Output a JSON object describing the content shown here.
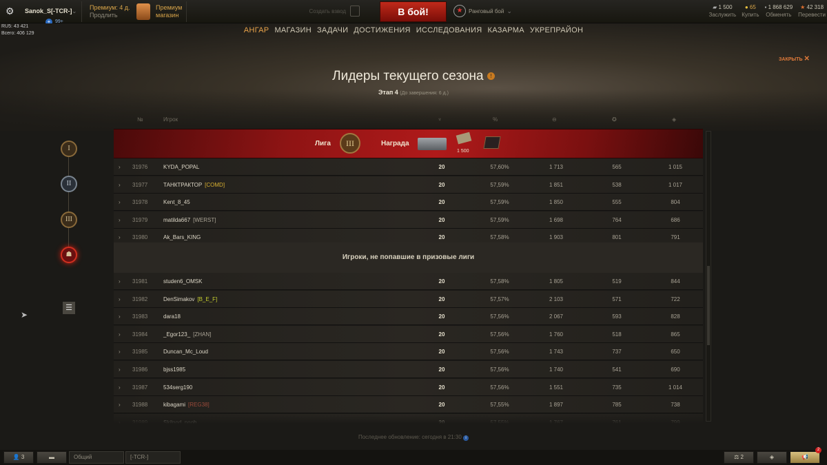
{
  "topbar": {
    "username": "Sanok_S[-TCR-]",
    "notifications": "99+",
    "stats_server": "RU5: 43 421",
    "stats_total": "Всего: 406 129",
    "premium": "Премиум: 4 д.",
    "extend": "Продлить",
    "premium_shop_1": "Премиум",
    "premium_shop_2": "магазин",
    "create_platoon": "Создать взвод",
    "battle_button": "В бой!",
    "battle_mode": "Ранговый бой",
    "currencies": [
      {
        "value": "1 500",
        "label": "Заслужить",
        "icon": "bond-icon"
      },
      {
        "value": "65",
        "label": "Купить",
        "icon": "gold-icon"
      },
      {
        "value": "1 868 629",
        "label": "Обменять",
        "icon": "credits-icon"
      },
      {
        "value": "42 318",
        "label": "Перевести",
        "icon": "free-xp-icon"
      }
    ]
  },
  "nav": [
    "АНГАР",
    "МАГАЗИН",
    "ЗАДАЧИ",
    "ДОСТИЖЕНИЯ",
    "ИССЛЕДОВАНИЯ",
    "КАЗАРМА",
    "УКРЕПРАЙОН"
  ],
  "close_label": "ЗАКРЫТЬ",
  "page": {
    "title": "Лидеры текущего сезона",
    "stage": "Этап 4",
    "remaining": "(До завершения: 6 д.)"
  },
  "table": {
    "col_num": "№",
    "col_player": "Игрок",
    "league_label": "Лига",
    "league_numeral": "III",
    "reward_label": "Награда",
    "reward_bonds": "1 500",
    "divider": "Игроки, не попавшие в призовые лиги",
    "rows_top": [
      [
        "31976",
        "KYDA_POPAL",
        "",
        "",
        "20",
        "57,60%",
        "1 713",
        "565",
        "1 015"
      ],
      [
        "31977",
        "ТАНКТРАКТОР",
        "[COMD]",
        "#d8b030",
        "20",
        "57,59%",
        "1 851",
        "538",
        "1 017"
      ],
      [
        "31978",
        "Kent_8_45",
        "",
        "",
        "20",
        "57,59%",
        "1 850",
        "555",
        "804"
      ],
      [
        "31979",
        "matilda667",
        "[WERST]",
        "#a8a294",
        "20",
        "57,59%",
        "1 698",
        "764",
        "686"
      ],
      [
        "31980",
        "Ak_Bars_KING",
        "",
        "",
        "20",
        "57,58%",
        "1 903",
        "801",
        "791"
      ]
    ],
    "rows_bottom": [
      [
        "31981",
        "studen6_OMSK",
        "",
        "",
        "20",
        "57,58%",
        "1 805",
        "519",
        "844"
      ],
      [
        "31982",
        "DenSimakov",
        "[B_E_F]",
        "#c8d030",
        "20",
        "57,57%",
        "2 103",
        "571",
        "722"
      ],
      [
        "31983",
        "dara18",
        "",
        "",
        "20",
        "57,56%",
        "2 067",
        "593",
        "828"
      ],
      [
        "31984",
        "_Egor123_",
        "[ZHAN]",
        "#a8a294",
        "20",
        "57,56%",
        "1 760",
        "518",
        "865"
      ],
      [
        "31985",
        "Duncan_Mc_Loud",
        "",
        "",
        "20",
        "57,56%",
        "1 743",
        "737",
        "650"
      ],
      [
        "31986",
        "bjss1985",
        "",
        "",
        "20",
        "57,56%",
        "1 740",
        "541",
        "690"
      ],
      [
        "31987",
        "534serg190",
        "",
        "",
        "20",
        "57,56%",
        "1 551",
        "735",
        "1 014"
      ],
      [
        "31988",
        "kibagami",
        "[REG38]",
        "#9a4a3a",
        "20",
        "57,55%",
        "1 897",
        "785",
        "738"
      ],
      [
        "31989",
        "Skilpod_noob",
        "",
        "",
        "20",
        "57,55%",
        "1 767",
        "761",
        "799"
      ]
    ]
  },
  "leagues": [
    "I",
    "II",
    "III"
  ],
  "footer": "Последнее обновление: сегодня в 21:30",
  "bottom": {
    "friends": "3",
    "channel_common": "Общий",
    "channel_clan": "[-TCR-]",
    "squads": "2",
    "notif_badge": "2"
  }
}
